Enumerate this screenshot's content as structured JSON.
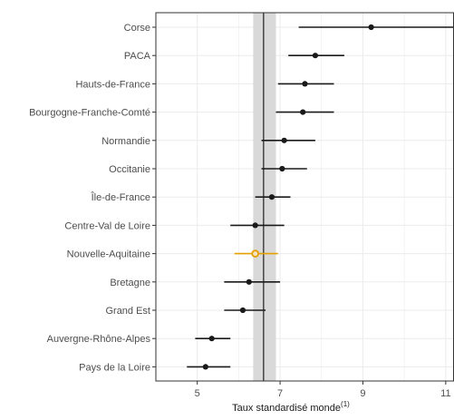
{
  "chart_data": {
    "type": "scatter",
    "categories": [
      "Corse",
      "PACA",
      "Hauts-de-France",
      "Bourgogne-Franche-Comté",
      "Normandie",
      "Occitanie",
      "Île-de-France",
      "Centre-Val de Loire",
      "Nouvelle-Aquitaine",
      "Bretagne",
      "Grand Est",
      "Auvergne-Rhône-Alpes",
      "Pays de la Loire"
    ],
    "values": [
      9.2,
      7.85,
      7.6,
      7.55,
      7.1,
      7.05,
      6.8,
      6.4,
      6.4,
      6.25,
      6.1,
      5.35,
      5.2
    ],
    "ci_low": [
      7.45,
      7.2,
      6.95,
      6.9,
      6.55,
      6.55,
      6.4,
      5.8,
      5.9,
      5.65,
      5.65,
      4.95,
      4.75
    ],
    "ci_high": [
      11.2,
      8.55,
      8.3,
      8.3,
      7.85,
      7.65,
      7.25,
      7.1,
      6.95,
      7.0,
      6.65,
      5.8,
      5.8
    ],
    "highlight": "Nouvelle-Aquitaine",
    "reference_line": 6.6,
    "reference_band": [
      6.35,
      6.9
    ],
    "x_ticks": [
      5,
      7,
      9,
      11
    ],
    "xlim": [
      4.0,
      11.2
    ],
    "grid": true,
    "xlabel": "Taux standardisé monde",
    "xlabel_superscript": "(1)",
    "colors": {
      "point": "#1a1a1a",
      "highlight": "#e69f00",
      "reference_line": "#4d4d4d",
      "reference_band": "#d9d9d9",
      "grid": "#ebebeb",
      "panel_border": "#333333"
    }
  }
}
